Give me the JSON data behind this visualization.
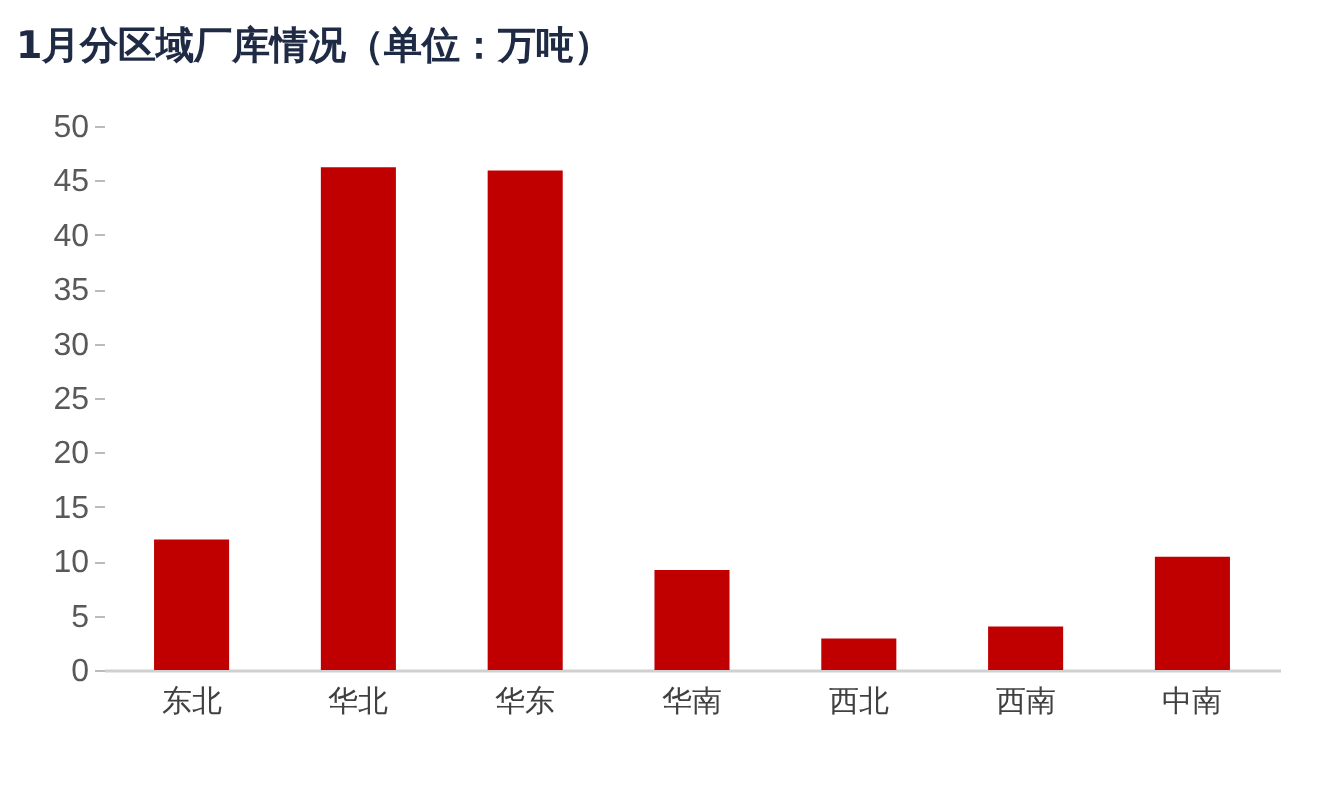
{
  "chart_data": {
    "type": "bar",
    "title": "1月分区域厂库情况（单位：万吨）",
    "categories": [
      "东北",
      "华北",
      "华东",
      "华南",
      "西北",
      "西南",
      "中南"
    ],
    "values": [
      12.0,
      46.2,
      45.9,
      9.2,
      2.9,
      4.0,
      10.4
    ],
    "color": "#c00000",
    "ylim": [
      0,
      50
    ],
    "yticks": [
      0,
      5,
      10,
      15,
      20,
      25,
      30,
      35,
      40,
      45,
      50
    ],
    "grid": false
  }
}
